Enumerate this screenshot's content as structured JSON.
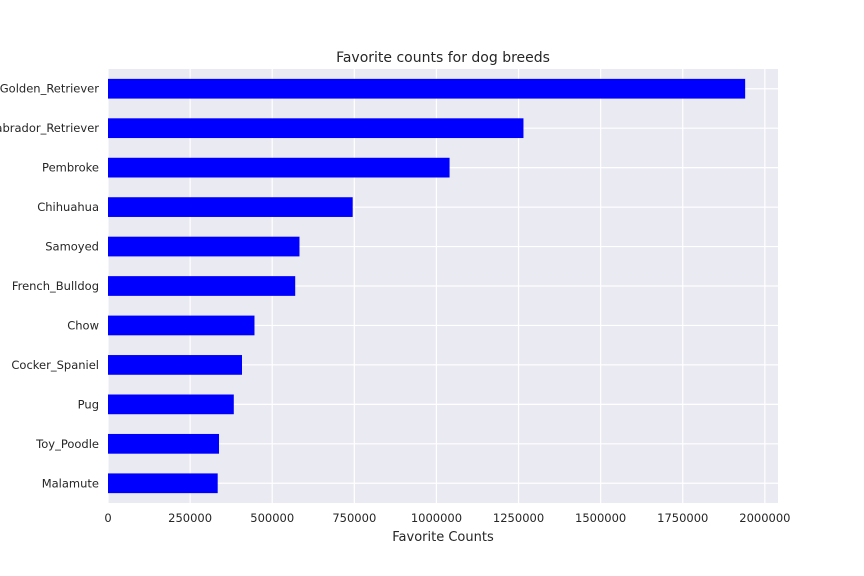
{
  "chart_data": {
    "type": "bar",
    "orientation": "horizontal",
    "title": "Favorite counts for dog breeds",
    "xlabel": "Favorite Counts",
    "ylabel": "",
    "xlim": [
      0,
      2040000
    ],
    "xticks": [
      0,
      250000,
      500000,
      750000,
      1000000,
      1250000,
      1500000,
      1750000,
      2000000
    ],
    "categories": [
      "Golden_Retriever",
      "Labrador_Retriever",
      "Pembroke",
      "Chihuahua",
      "Samoyed",
      "French_Bulldog",
      "Chow",
      "Cocker_Spaniel",
      "Pug",
      "Toy_Poodle",
      "Malamute"
    ],
    "values": [
      1940000,
      1265000,
      1040000,
      745000,
      583000,
      570000,
      446000,
      408000,
      383000,
      338000,
      334000
    ],
    "bar_color": "#0000ff",
    "background_color": "#eaeaf2",
    "grid_color": "#ffffff",
    "grid": true,
    "legend": "none"
  }
}
